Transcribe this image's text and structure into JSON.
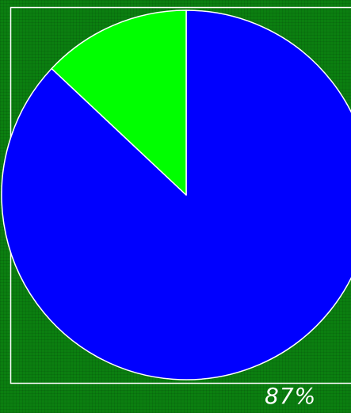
{
  "chart_data": {
    "type": "pie",
    "slices": [
      {
        "value": 87,
        "color": "#0000ff"
      },
      {
        "value": 13,
        "color": "#00ff00"
      }
    ],
    "label": "87%",
    "background": "#0b7f10",
    "frame_color": "#ffffff"
  }
}
